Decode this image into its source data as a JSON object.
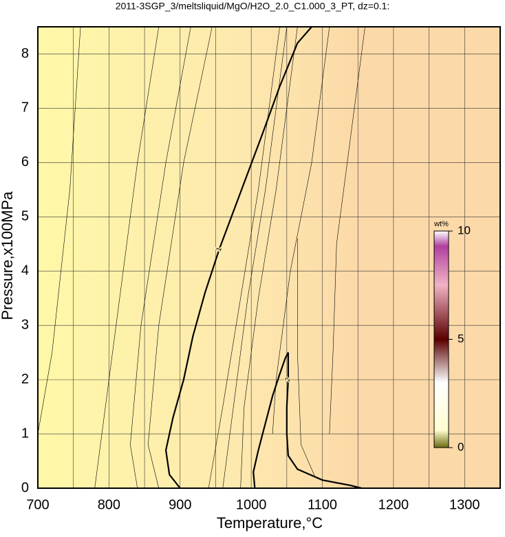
{
  "chart_data": {
    "type": "contour",
    "title": "2011-3SGP_3/meltsliquid/MgO/H2O_2.0_C1.000_3_PT, dz=0.1:",
    "xlabel": "Temperature,°C",
    "ylabel": "Pressure,x100MPa",
    "xlim": [
      700,
      1350
    ],
    "ylim": [
      0,
      8.5
    ],
    "xticks": [
      700,
      800,
      900,
      1000,
      1100,
      1200,
      1300
    ],
    "xgrid": [
      750,
      850,
      950,
      1050,
      1150,
      1250
    ],
    "yticks": [
      0,
      1,
      2,
      3,
      4,
      5,
      6,
      7,
      8
    ],
    "grid": true,
    "series": [
      {
        "name": "1",
        "width": 2.2,
        "x": [
          900,
          885,
          880,
          890,
          905,
          918,
          935,
          955,
          975,
          995,
          1015,
          1040,
          1065,
          1085
        ],
        "y": [
          0,
          0.25,
          0.7,
          1.3,
          2.0,
          2.8,
          3.6,
          4.4,
          5.1,
          5.8,
          6.5,
          7.4,
          8.2,
          8.5
        ]
      },
      {
        "name": "2",
        "width": 2.2,
        "x": [
          1005,
          1003,
          1010,
          1020,
          1030,
          1040,
          1048,
          1052,
          1052,
          1050,
          1050,
          1052,
          1065,
          1100,
          1140,
          1155
        ],
        "y": [
          0,
          0.3,
          0.7,
          1.2,
          1.7,
          2.1,
          2.4,
          2.5,
          2.0,
          1.5,
          1.0,
          0.6,
          0.35,
          0.15,
          0.05,
          0
        ]
      },
      {
        "width": 0.6,
        "x": [
          700,
          720,
          745,
          760
        ],
        "y": [
          1.0,
          2.5,
          5.5,
          8.5
        ]
      },
      {
        "width": 0.6,
        "x": [
          780,
          790,
          810,
          840,
          870
        ],
        "y": [
          0,
          1,
          3,
          6,
          8.5
        ]
      },
      {
        "width": 0.6,
        "x": [
          840,
          830,
          845,
          880,
          915
        ],
        "y": [
          0,
          0.8,
          3,
          6,
          8.5
        ]
      },
      {
        "width": 0.6,
        "x": [
          870,
          855,
          870,
          905,
          945
        ],
        "y": [
          0,
          0.8,
          3,
          6,
          8.5
        ]
      },
      {
        "width": 0.6,
        "x": [
          940,
          960,
          985,
          1010,
          1040
        ],
        "y": [
          0,
          1.5,
          3.5,
          5.5,
          8.5
        ]
      },
      {
        "width": 0.6,
        "x": [
          960,
          975,
          995,
          1020,
          1050
        ],
        "y": [
          0,
          1.5,
          3.5,
          5.5,
          8.5
        ]
      },
      {
        "width": 0.6,
        "x": [
          985,
          990,
          1010,
          1035,
          1065
        ],
        "y": [
          0,
          1.5,
          3.5,
          5.5,
          8.5
        ]
      },
      {
        "width": 0.6,
        "x": [
          1030,
          1035,
          1055,
          1085,
          1110
        ],
        "y": [
          1,
          2,
          4,
          6,
          8.5
        ]
      },
      {
        "width": 0.6,
        "x": [
          1090,
          1070,
          1065,
          1065
        ],
        "y": [
          0.2,
          0.8,
          2.5,
          4.6
        ]
      },
      {
        "width": 0.6,
        "x": [
          1110,
          1115,
          1120,
          1140,
          1160
        ],
        "y": [
          1.0,
          2.5,
          4.5,
          6.5,
          8.5
        ]
      }
    ],
    "colorbar": {
      "title": "wt%",
      "lim": [
        0,
        10
      ],
      "ticks": [
        0,
        5,
        10
      ]
    }
  }
}
